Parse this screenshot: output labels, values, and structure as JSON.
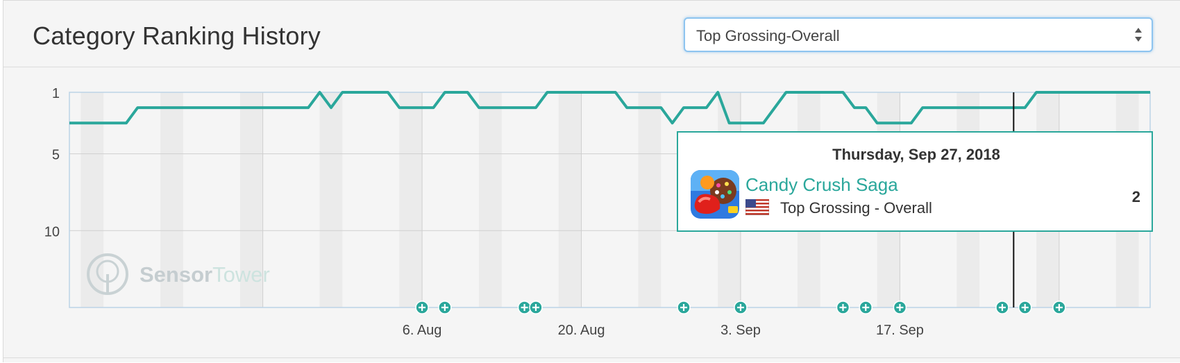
{
  "header": {
    "title": "Category Ranking History",
    "select": {
      "value": "Top Grossing-Overall"
    }
  },
  "tooltip": {
    "date": "Thursday, Sep 27, 2018",
    "app_name": "Candy Crush Saga",
    "category": "Top Grossing - Overall",
    "rank": "2",
    "country_flag": "us-flag-icon",
    "app_icon": "candy-crush-app-icon"
  },
  "watermark": {
    "part1": "Sensor",
    "part2": "Tower"
  },
  "colors": {
    "line": "#2aa79b",
    "accent": "#2aa79b",
    "weekend_band": "#ebebeb",
    "grid": "#cfcfcf",
    "crosshair": "#111111"
  },
  "chart_data": {
    "type": "line",
    "title": "",
    "xlabel": "",
    "ylabel": "",
    "y_reversed": true,
    "ylim": [
      1,
      15
    ],
    "y_ticks": [
      1,
      5,
      10
    ],
    "x_start_date": "2018-07-06",
    "x_end_date": "2018-10-09",
    "x_tick_labels": [
      "6. Aug",
      "20. Aug",
      "3. Sep",
      "17. Sep"
    ],
    "x_tick_dates": [
      "2018-07-23",
      "2018-08-06",
      "2018-08-20",
      "2018-09-03",
      "2018-09-17",
      "2018-10-01"
    ],
    "grid": true,
    "crosshair_date": "2018-09-27",
    "series": [
      {
        "points": [
          [
            "2018-07-06",
            3
          ],
          [
            "2018-07-11",
            3
          ],
          [
            "2018-07-12",
            2
          ],
          [
            "2018-07-22",
            2
          ],
          [
            "2018-07-23",
            2
          ],
          [
            "2018-07-27",
            2
          ],
          [
            "2018-07-28",
            1
          ],
          [
            "2018-07-29",
            2
          ],
          [
            "2018-07-30",
            1
          ],
          [
            "2018-08-03",
            1
          ],
          [
            "2018-08-04",
            2
          ],
          [
            "2018-08-07",
            2
          ],
          [
            "2018-08-08",
            1
          ],
          [
            "2018-08-10",
            1
          ],
          [
            "2018-08-11",
            2
          ],
          [
            "2018-08-15",
            2
          ],
          [
            "2018-08-16",
            2
          ],
          [
            "2018-08-17",
            1
          ],
          [
            "2018-08-23",
            1
          ],
          [
            "2018-08-24",
            2
          ],
          [
            "2018-08-27",
            2
          ],
          [
            "2018-08-28",
            3
          ],
          [
            "2018-08-29",
            2
          ],
          [
            "2018-08-31",
            2
          ],
          [
            "2018-09-01",
            1
          ],
          [
            "2018-09-02",
            3
          ],
          [
            "2018-09-05",
            3
          ],
          [
            "2018-09-07",
            1
          ],
          [
            "2018-09-12",
            1
          ],
          [
            "2018-09-13",
            2
          ],
          [
            "2018-09-14",
            2
          ],
          [
            "2018-09-15",
            3
          ],
          [
            "2018-09-18",
            3
          ],
          [
            "2018-09-19",
            2
          ],
          [
            "2018-09-27",
            2
          ],
          [
            "2018-09-28",
            2
          ],
          [
            "2018-09-29",
            1
          ],
          [
            "2018-10-09",
            1
          ]
        ]
      }
    ],
    "events": [
      "2018-08-06",
      "2018-08-08",
      "2018-08-15",
      "2018-08-16",
      "2018-08-29",
      "2018-09-03",
      "2018-09-12",
      "2018-09-14",
      "2018-09-17",
      "2018-09-26",
      "2018-09-28",
      "2018-10-01"
    ]
  }
}
